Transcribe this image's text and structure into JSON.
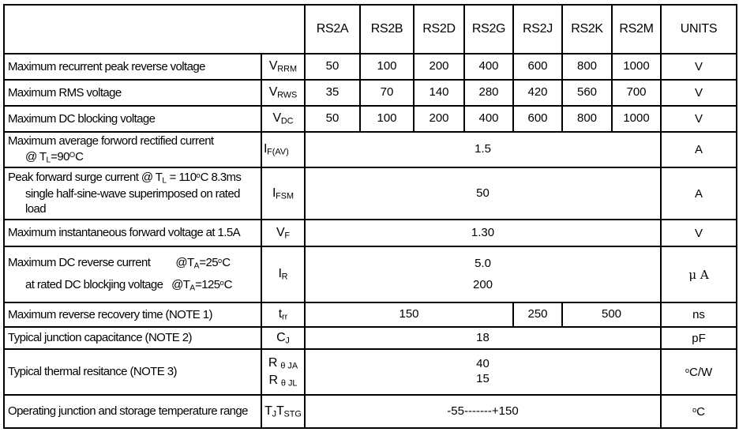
{
  "table": {
    "header": {
      "blank": "",
      "models": [
        "RS2A",
        "RS2B",
        "RS2D",
        "RS2G",
        "RS2J",
        "RS2K",
        "RS2M"
      ],
      "units_label": "UNITS"
    },
    "rows": [
      {
        "id": "vrrm",
        "label": {
          "lines": [
            {
              "segs": [
                {
                  "t": "Maximum recurrent peak reverse voltage"
                }
              ]
            }
          ]
        },
        "symbol": {
          "lines": [
            [
              {
                "t": "V"
              },
              {
                "sub": "RRM"
              }
            ]
          ]
        },
        "cells": [
          {
            "span": 1,
            "lines": [
              "50"
            ]
          },
          {
            "span": 1,
            "lines": [
              "100"
            ]
          },
          {
            "span": 1,
            "lines": [
              "200"
            ]
          },
          {
            "span": 1,
            "lines": [
              "400"
            ]
          },
          {
            "span": 1,
            "lines": [
              "600"
            ]
          },
          {
            "span": 1,
            "lines": [
              "800"
            ]
          },
          {
            "span": 1,
            "lines": [
              "1000"
            ]
          }
        ],
        "unit": {
          "segs": [
            {
              "t": "V"
            }
          ]
        }
      },
      {
        "id": "vrws",
        "label": {
          "lines": [
            {
              "segs": [
                {
                  "t": "Maximum RMS voltage"
                }
              ]
            }
          ]
        },
        "symbol": {
          "lines": [
            [
              {
                "t": "V"
              },
              {
                "sub": "RWS"
              }
            ]
          ]
        },
        "cells": [
          {
            "span": 1,
            "lines": [
              "35"
            ]
          },
          {
            "span": 1,
            "lines": [
              "70"
            ]
          },
          {
            "span": 1,
            "lines": [
              "140"
            ]
          },
          {
            "span": 1,
            "lines": [
              "280"
            ]
          },
          {
            "span": 1,
            "lines": [
              "420"
            ]
          },
          {
            "span": 1,
            "lines": [
              "560"
            ]
          },
          {
            "span": 1,
            "lines": [
              "700"
            ]
          }
        ],
        "unit": {
          "segs": [
            {
              "t": "V"
            }
          ]
        }
      },
      {
        "id": "vdc",
        "label": {
          "lines": [
            {
              "segs": [
                {
                  "t": "Maximum DC blocking voltage"
                }
              ]
            }
          ]
        },
        "symbol": {
          "lines": [
            [
              {
                "t": "V"
              },
              {
                "sub": "DC"
              }
            ]
          ]
        },
        "cells": [
          {
            "span": 1,
            "lines": [
              "50"
            ]
          },
          {
            "span": 1,
            "lines": [
              "100"
            ]
          },
          {
            "span": 1,
            "lines": [
              "200"
            ]
          },
          {
            "span": 1,
            "lines": [
              "400"
            ]
          },
          {
            "span": 1,
            "lines": [
              "600"
            ]
          },
          {
            "span": 1,
            "lines": [
              "800"
            ]
          },
          {
            "span": 1,
            "lines": [
              "1000"
            ]
          }
        ],
        "unit": {
          "segs": [
            {
              "t": "V"
            }
          ]
        }
      },
      {
        "id": "ifav",
        "label": {
          "lines": [
            {
              "segs": [
                {
                  "t": "Maximum average forword rectified current"
                }
              ]
            },
            {
              "indent": true,
              "segs": [
                {
                  "t": "@ T"
                },
                {
                  "sub": "L"
                },
                {
                  "t": "=90"
                },
                {
                  "sup": "O"
                },
                {
                  "t": "C"
                }
              ]
            }
          ]
        },
        "symbol": {
          "align": "left",
          "lines": [
            [
              {
                "t": "I"
              },
              {
                "sub": "F(AV)"
              }
            ]
          ]
        },
        "cells": [
          {
            "span": 7,
            "lines": [
              "1.5"
            ]
          }
        ],
        "unit": {
          "segs": [
            {
              "t": "A"
            }
          ]
        }
      },
      {
        "id": "ifsm",
        "label": {
          "lines": [
            {
              "segs": [
                {
                  "t": "Peak forward surge current @ T"
                },
                {
                  "sub": "L"
                },
                {
                  "t": " = 110"
                },
                {
                  "sup": "o"
                },
                {
                  "t": "C 8.3ms"
                }
              ]
            },
            {
              "indent": true,
              "segs": [
                {
                  "t": "single half-sine-wave superimposed on rated"
                }
              ]
            },
            {
              "indent": true,
              "segs": [
                {
                  "t": "load"
                }
              ]
            }
          ]
        },
        "symbol": {
          "lines": [
            [
              {
                "t": "I"
              },
              {
                "sub": "FSM"
              }
            ]
          ]
        },
        "cells": [
          {
            "span": 7,
            "lines": [
              "50"
            ]
          }
        ],
        "unit": {
          "segs": [
            {
              "t": "A"
            }
          ]
        }
      },
      {
        "id": "vf",
        "label": {
          "lines": [
            {
              "segs": [
                {
                  "t": "Maximum instantaneous forward voltage at 1.5A"
                }
              ]
            }
          ]
        },
        "symbol": {
          "lines": [
            [
              {
                "t": "V"
              },
              {
                "sub": "F"
              }
            ]
          ]
        },
        "cells": [
          {
            "span": 7,
            "lines": [
              "1.30"
            ]
          }
        ],
        "unit": {
          "segs": [
            {
              "t": "V"
            }
          ]
        }
      },
      {
        "id": "ir",
        "label": {
          "lines": [
            {
              "segs": [
                {
                  "t": "Maximum DC reverse current         @T"
                },
                {
                  "sub": "A"
                },
                {
                  "t": "=25"
                },
                {
                  "sup": "o"
                },
                {
                  "t": "C"
                }
              ]
            },
            {
              "indent": true,
              "segs": [
                {
                  "t": "at rated DC blockjing voltage   @T"
                },
                {
                  "sub": "A"
                },
                {
                  "t": "=125"
                },
                {
                  "sup": "o"
                },
                {
                  "t": "C"
                }
              ]
            }
          ]
        },
        "symbol": {
          "lines": [
            [
              {
                "t": "I"
              },
              {
                "sub": "R"
              }
            ]
          ]
        },
        "cells": [
          {
            "span": 7,
            "lines": [
              "5.0",
              "200"
            ]
          }
        ],
        "unit": {
          "serif": true,
          "segs": [
            {
              "t": "μ A"
            }
          ]
        }
      },
      {
        "id": "trr",
        "label": {
          "lines": [
            {
              "segs": [
                {
                  "t": "Maximum reverse recovery time (NOTE 1)"
                }
              ]
            }
          ]
        },
        "symbol": {
          "lines": [
            [
              {
                "t": "t"
              },
              {
                "sub": "rr"
              }
            ]
          ]
        },
        "cells": [
          {
            "span": 4,
            "lines": [
              "150"
            ]
          },
          {
            "span": 1,
            "lines": [
              "250"
            ]
          },
          {
            "span": 2,
            "lines": [
              "500"
            ]
          }
        ],
        "unit": {
          "segs": [
            {
              "t": "ns"
            }
          ]
        }
      },
      {
        "id": "cj",
        "label": {
          "lines": [
            {
              "segs": [
                {
                  "t": "Typical junction capacitance (NOTE 2)"
                }
              ]
            }
          ]
        },
        "symbol": {
          "lines": [
            [
              {
                "t": "C"
              },
              {
                "sub": "J"
              }
            ]
          ]
        },
        "cells": [
          {
            "span": 7,
            "lines": [
              "18"
            ]
          }
        ],
        "unit": {
          "segs": [
            {
              "t": "pF"
            }
          ]
        }
      },
      {
        "id": "rth",
        "label": {
          "lines": [
            {
              "segs": [
                {
                  "t": "Typical thermal resitance (NOTE 3)"
                }
              ]
            }
          ]
        },
        "symbol": {
          "lines": [
            [
              {
                "t": "R "
              },
              {
                "sub": "θ JA"
              }
            ],
            [
              {
                "t": "R "
              },
              {
                "sub": "θ JL"
              }
            ]
          ]
        },
        "cells": [
          {
            "span": 7,
            "lines": [
              "40",
              "15"
            ]
          }
        ],
        "unit": {
          "segs": [
            {
              "sup": "o"
            },
            {
              "t": "C/W"
            }
          ]
        }
      },
      {
        "id": "tjstg",
        "label": {
          "lines": [
            {
              "segs": [
                {
                  "t": "Operating junction and storage temperature range"
                }
              ]
            }
          ]
        },
        "symbol": {
          "lines": [
            [
              {
                "t": "T"
              },
              {
                "sub": "J"
              },
              {
                "t": "T"
              },
              {
                "sub": "STG"
              }
            ]
          ]
        },
        "cells": [
          {
            "span": 7,
            "lines": [
              "-55-------+150"
            ]
          }
        ],
        "unit": {
          "segs": [
            {
              "sup": "o"
            },
            {
              "t": "C"
            }
          ]
        }
      }
    ]
  }
}
